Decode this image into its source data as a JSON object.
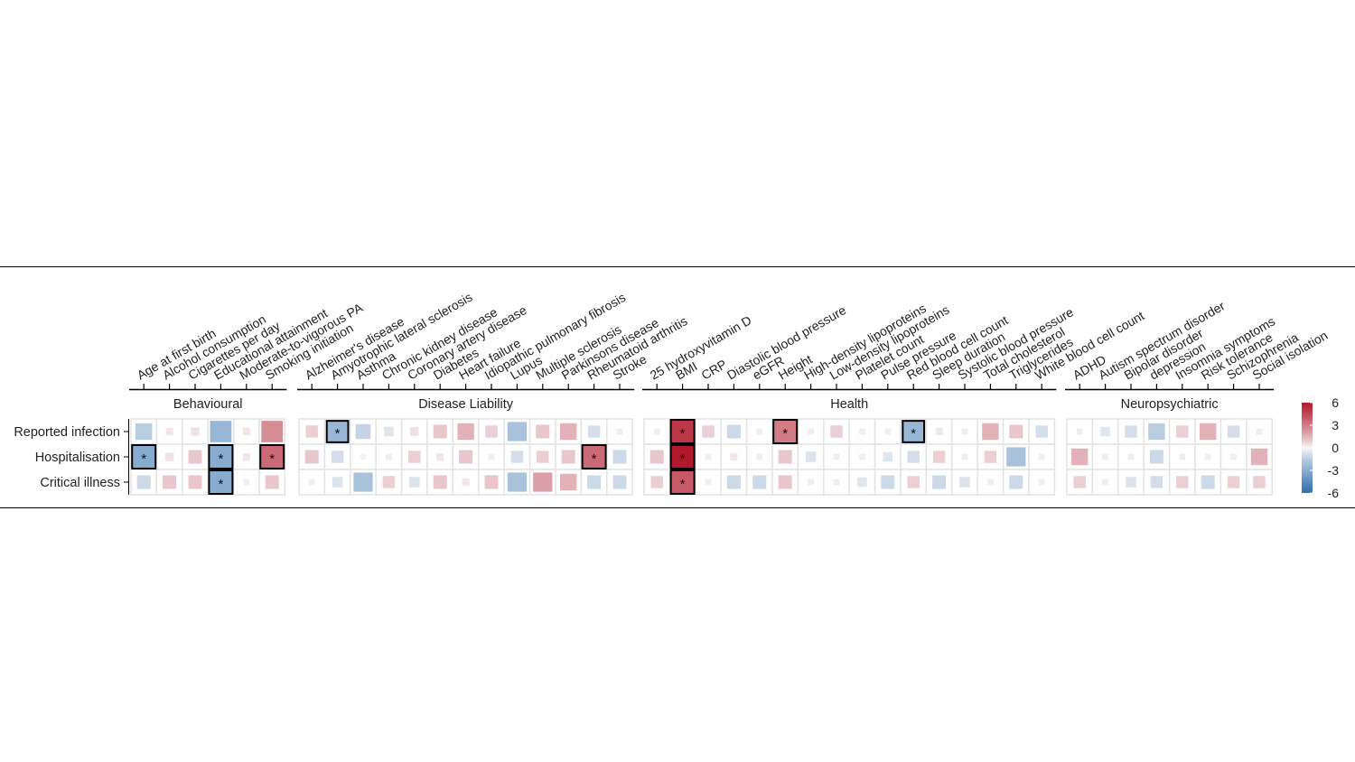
{
  "chart_data": {
    "type": "heatmap",
    "colorbar": {
      "ticks": [
        "6",
        "3",
        "0",
        "-3",
        "-6"
      ],
      "range": [
        -6,
        6
      ],
      "low_color": "#2f6fb0",
      "mid_color": "#f7f7f7",
      "high_color": "#b2182b"
    },
    "rows": [
      "Reported infection",
      "Hospitalisation",
      "Critical illness"
    ],
    "groups": [
      {
        "name": "Behavioural",
        "traits": [
          "Age at first birth",
          "Alcohol consumption",
          "Cigarettes per day",
          "Educational attainment",
          "Moderate-to-vigorous PA",
          "Smoking initiation"
        ],
        "values": [
          [
            -1.5,
            0.3,
            0.4,
            -2.5,
            0.3,
            2.5
          ],
          [
            -3.0,
            0.4,
            1.0,
            -3.0,
            0.3,
            3.5
          ],
          [
            -1.0,
            1.0,
            1.0,
            -3.0,
            0.2,
            1.0
          ]
        ],
        "sig": [
          [
            false,
            false,
            false,
            false,
            false,
            false
          ],
          [
            true,
            false,
            false,
            true,
            false,
            true
          ],
          [
            false,
            false,
            false,
            true,
            false,
            false
          ]
        ]
      },
      {
        "name": "Disease Liability",
        "traits": [
          "Alzheimer's disease",
          "Amyotrophic lateral sclerosis",
          "Asthma",
          "Chronic kidney disease",
          "Coronary artery disease",
          "Diabetes",
          "Heart failure",
          "Idiopathic pulmonary fibrosis",
          "Lupus",
          "Multiple sclerosis",
          "Parkinsons disease",
          "Rheumatoid arthritis",
          "Stroke"
        ],
        "values": [
          [
            0.8,
            -2.5,
            -1.2,
            -0.5,
            0.4,
            1.0,
            1.5,
            0.8,
            -2.0,
            1.0,
            1.5,
            -0.8,
            0.2
          ],
          [
            1.0,
            -0.8,
            0.1,
            0.2,
            0.8,
            0.3,
            1.0,
            0.2,
            -0.8,
            0.8,
            1.0,
            3.5,
            -1.0
          ],
          [
            0.2,
            -0.6,
            -2.0,
            0.8,
            -0.6,
            1.0,
            0.3,
            1.0,
            -2.0,
            2.0,
            1.5,
            -1.0,
            -1.0
          ]
        ],
        "sig": [
          [
            false,
            true,
            false,
            false,
            false,
            false,
            false,
            false,
            false,
            false,
            false,
            false,
            false
          ],
          [
            false,
            false,
            false,
            false,
            false,
            false,
            false,
            false,
            false,
            false,
            false,
            true,
            false
          ],
          [
            false,
            false,
            false,
            false,
            false,
            false,
            false,
            false,
            false,
            false,
            false,
            false,
            false
          ]
        ]
      },
      {
        "name": "Health",
        "traits": [
          "25 hydroxyvitamin D",
          "BMI",
          "CRP",
          "Diastolic blood pressure",
          "eGFR",
          "Height",
          "High-density lipoproteins",
          "Low-density lipoproteins",
          "Platelet count",
          "Pulse pressure",
          "Red blood cell count",
          "Sleep duration",
          "Systolic blood pressure",
          "Total cholesterol",
          "Triglycerides",
          "White blood cell count"
        ],
        "values": [
          [
            0.2,
            5.0,
            0.8,
            -1.0,
            0.2,
            3.0,
            0.2,
            0.8,
            0.2,
            0.2,
            -2.5,
            0.3,
            0.2,
            1.5,
            1.0,
            -0.8
          ],
          [
            1.0,
            6.0,
            0.2,
            0.3,
            0.2,
            1.0,
            -0.6,
            0.2,
            0.2,
            -0.5,
            -0.8,
            0.8,
            0.2,
            0.8,
            -2.0,
            0.2
          ],
          [
            0.8,
            4.0,
            0.2,
            -1.0,
            -1.0,
            1.0,
            0.2,
            0.2,
            -0.5,
            -1.0,
            0.8,
            -1.0,
            -0.6,
            0.2,
            -1.0,
            0.2
          ]
        ],
        "sig": [
          [
            false,
            true,
            false,
            false,
            false,
            true,
            false,
            false,
            false,
            false,
            true,
            false,
            false,
            false,
            false,
            false
          ],
          [
            false,
            true,
            false,
            false,
            false,
            false,
            false,
            false,
            false,
            false,
            false,
            false,
            false,
            false,
            false,
            false
          ],
          [
            false,
            true,
            false,
            false,
            false,
            false,
            false,
            false,
            false,
            false,
            false,
            false,
            false,
            false,
            false,
            false
          ]
        ]
      },
      {
        "name": "Neuropsychiatric",
        "traits": [
          "ADHD",
          "Autism spectrum disorder",
          "Bipolar disorder",
          "depression",
          "Insomnia symptoms",
          "Risk tolerance",
          "Schizophrenia",
          "Social isolation"
        ],
        "values": [
          [
            0.2,
            -0.5,
            -0.8,
            -1.5,
            0.8,
            1.5,
            -0.8,
            0.2
          ],
          [
            1.5,
            0.2,
            0.2,
            -1.0,
            0.2,
            0.2,
            0.2,
            1.5
          ],
          [
            0.8,
            0.2,
            -0.6,
            -0.8,
            0.8,
            -1.0,
            0.8,
            0.8
          ]
        ],
        "sig": [
          [
            false,
            false,
            false,
            false,
            false,
            false,
            false,
            false
          ],
          [
            false,
            false,
            false,
            false,
            false,
            false,
            false,
            false
          ],
          [
            false,
            false,
            false,
            false,
            false,
            false,
            false,
            false
          ]
        ]
      }
    ],
    "significance_marker": "*",
    "grid": true
  }
}
